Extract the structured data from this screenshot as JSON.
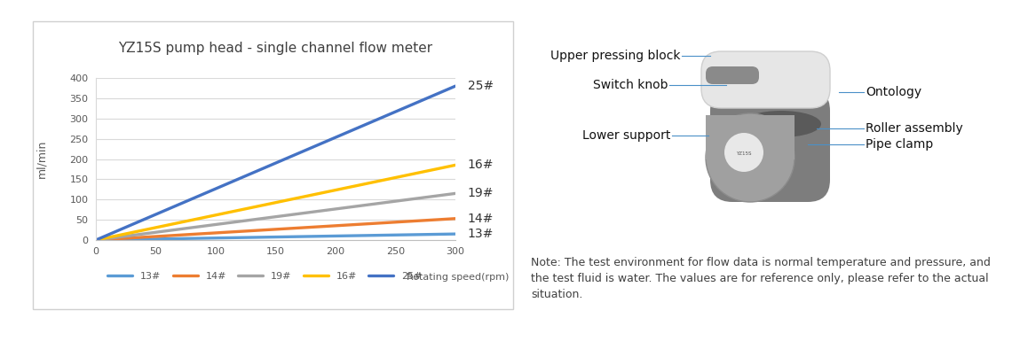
{
  "chart_data": {
    "type": "line",
    "title": "YZ15S pump head - single channel flow meter",
    "x_label": "Rotating speed(rpm)",
    "y_label": "ml/min",
    "x": [
      0,
      300
    ],
    "series": [
      {
        "name": "13#",
        "color": "#5b9bd5",
        "values": [
          0,
          15
        ]
      },
      {
        "name": "14#",
        "color": "#ed7d31",
        "values": [
          0,
          53
        ]
      },
      {
        "name": "19#",
        "color": "#a5a5a5",
        "values": [
          0,
          115
        ]
      },
      {
        "name": "16#",
        "color": "#ffc000",
        "values": [
          0,
          185
        ]
      },
      {
        "name": "25#",
        "color": "#4472c4",
        "values": [
          0,
          380
        ]
      }
    ],
    "xlim": [
      0,
      300
    ],
    "xticks": [
      0,
      50,
      100,
      150,
      200,
      250,
      300
    ],
    "ylim": [
      0,
      400
    ],
    "yticks": [
      0,
      50,
      100,
      150,
      200,
      250,
      300,
      350,
      400
    ],
    "grid": true,
    "legend": "bottom"
  },
  "diagram": {
    "product_label": "YZ15S",
    "labels_left": [
      "Upper pressing block",
      "Switch knob",
      "Lower support"
    ],
    "labels_right": [
      "Ontology",
      "Roller assembly",
      "Pipe clamp"
    ]
  },
  "note": "Note: The test environment for flow data is normal temperature and pressure, and the test fluid is water. The values are for reference only, please refer to the actual situation."
}
